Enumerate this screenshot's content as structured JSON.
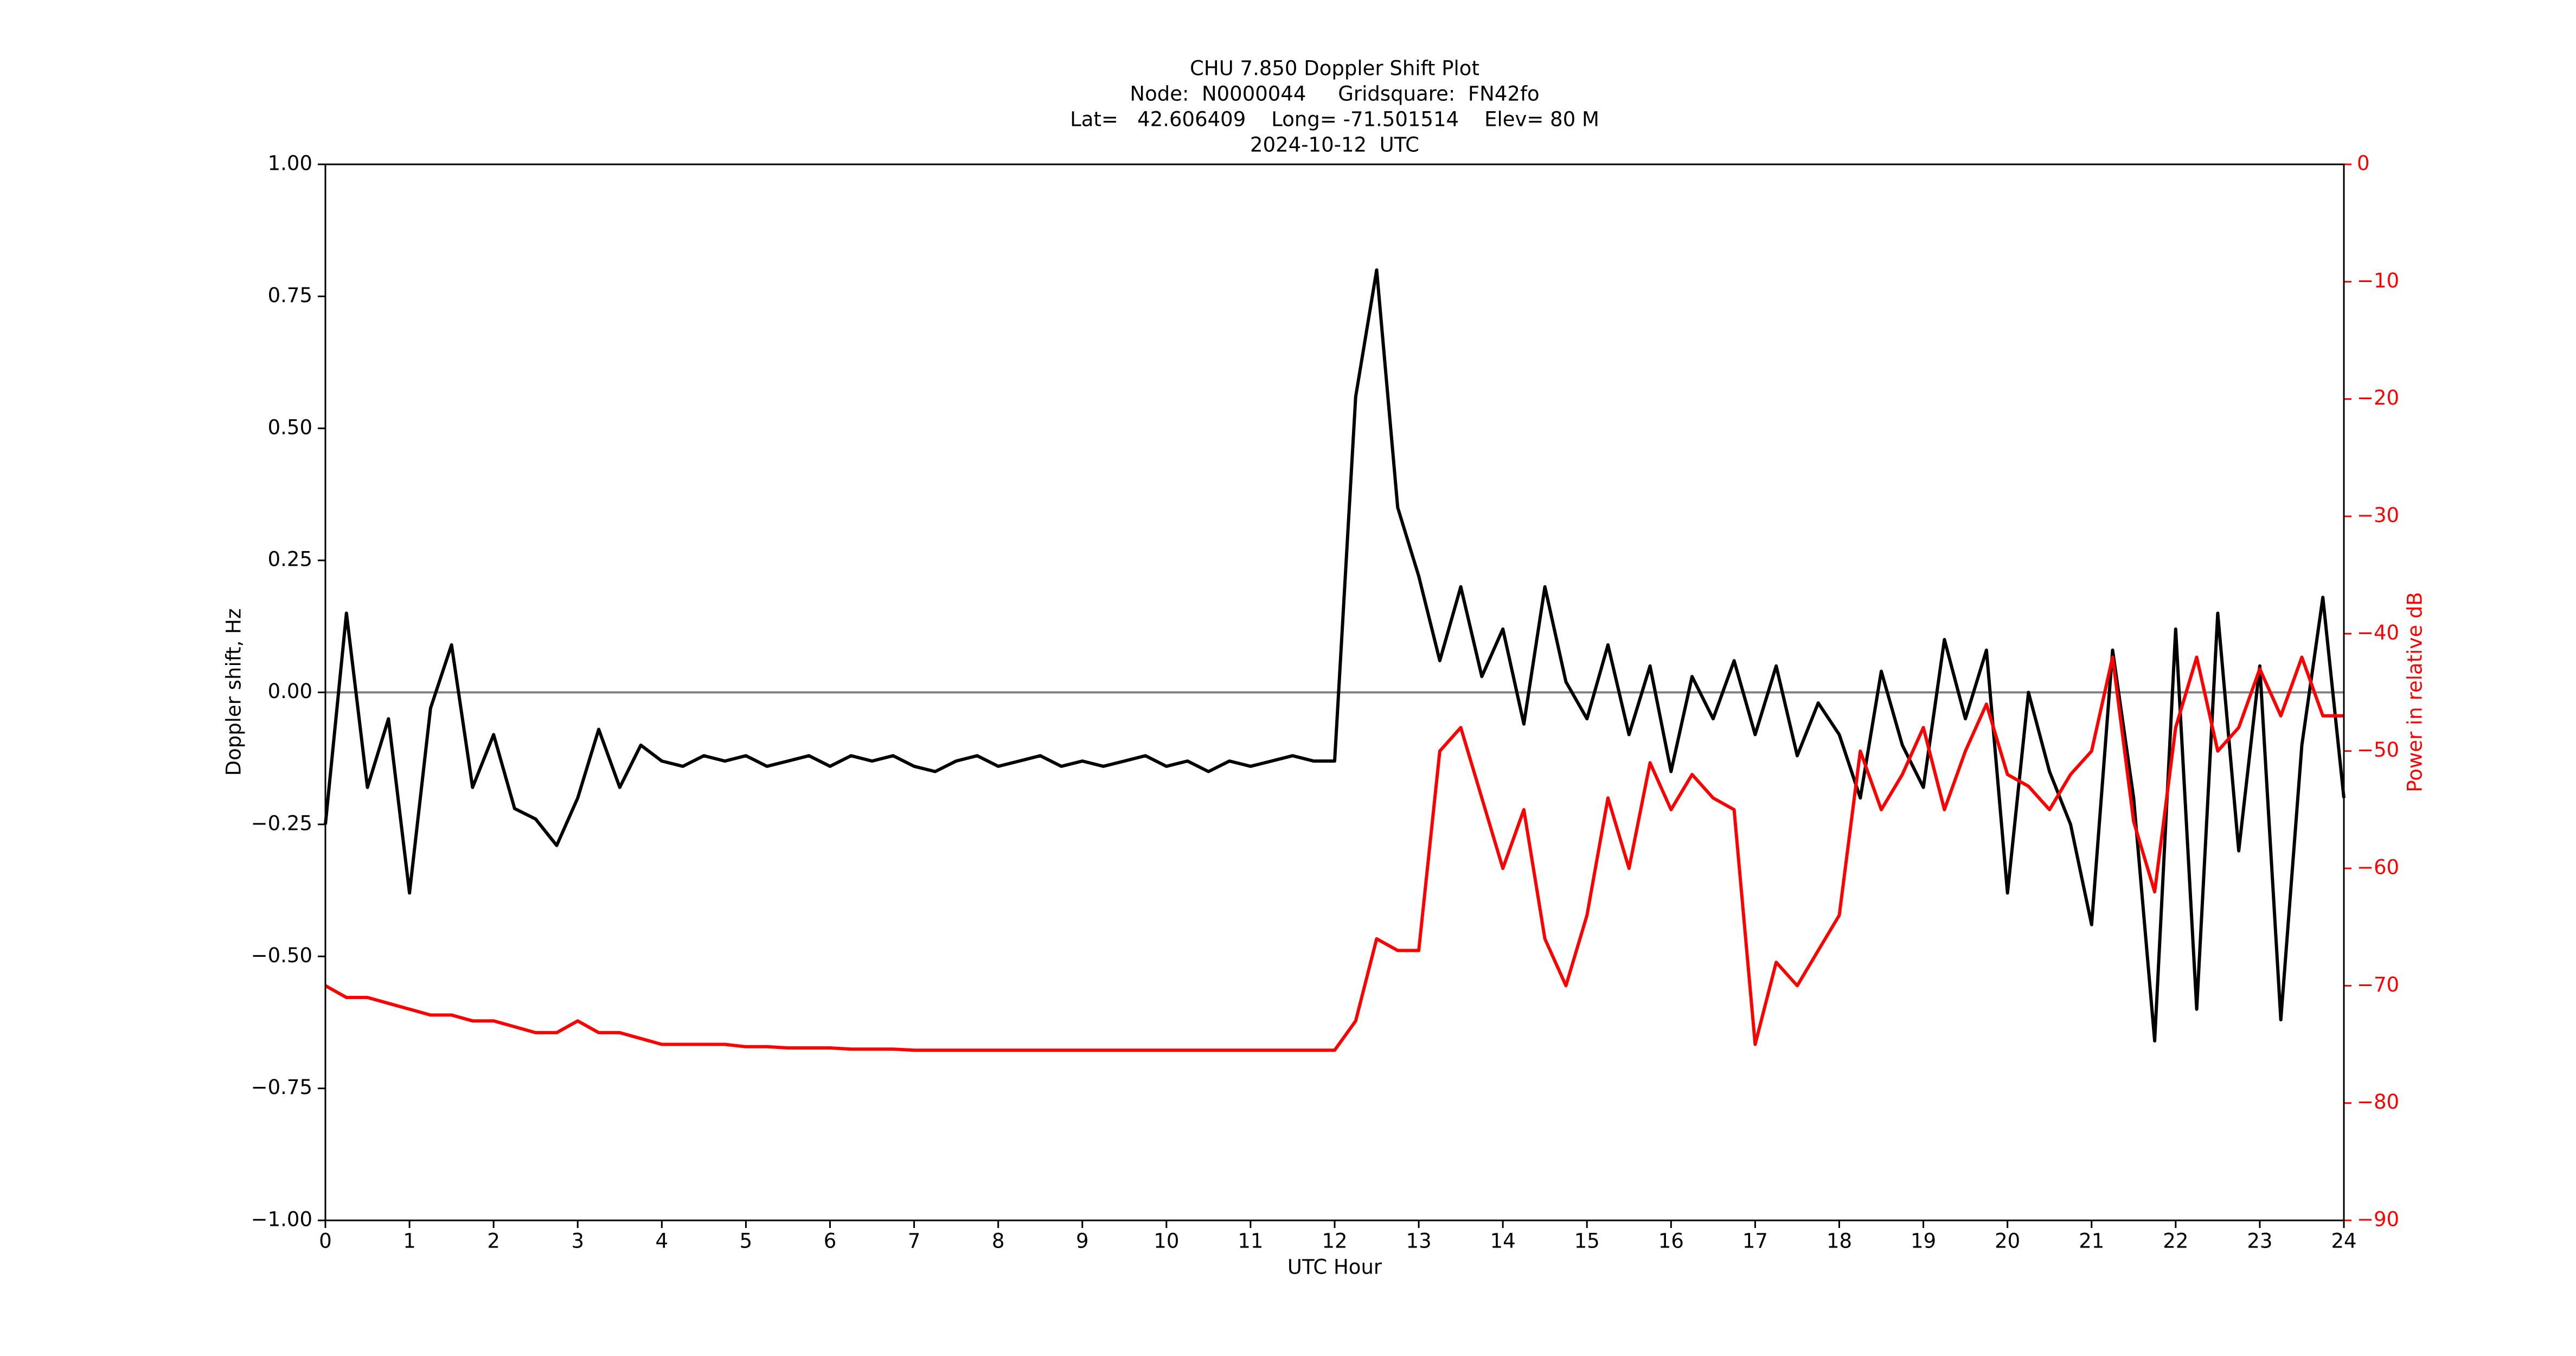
{
  "chart_data": {
    "type": "line",
    "title": [
      "CHU 7.850 Doppler Shift Plot",
      "Node:  N0000044     Gridsquare:  FN42fo",
      "Lat=   42.606409    Long= -71.501514    Elev= 80 M",
      "2024-10-12  UTC"
    ],
    "xlabel": "UTC Hour",
    "ylabel": "Doppler shift, Hz",
    "y2label": "Power in relative dB",
    "xlim": [
      0,
      24
    ],
    "xticks": [
      0,
      1,
      2,
      3,
      4,
      5,
      6,
      7,
      8,
      9,
      10,
      11,
      12,
      13,
      14,
      15,
      16,
      17,
      18,
      19,
      20,
      21,
      22,
      23,
      24
    ],
    "ylim": [
      -1,
      1
    ],
    "yticks": [
      {
        "value": -1,
        "label": "−1.00"
      },
      {
        "value": -0.75,
        "label": "−0.75"
      },
      {
        "value": -0.5,
        "label": "−0.50"
      },
      {
        "value": -0.25,
        "label": "−0.25"
      },
      {
        "value": 0,
        "label": "0.00"
      },
      {
        "value": 0.25,
        "label": "0.25"
      },
      {
        "value": 0.5,
        "label": "0.50"
      },
      {
        "value": 0.75,
        "label": "0.75"
      },
      {
        "value": 1,
        "label": "1.00"
      }
    ],
    "y2lim": [
      -90,
      0
    ],
    "y2ticks": [
      {
        "value": -90,
        "label": "−90"
      },
      {
        "value": -80,
        "label": "−80"
      },
      {
        "value": -70,
        "label": "−70"
      },
      {
        "value": -60,
        "label": "−60"
      },
      {
        "value": -50,
        "label": "−50"
      },
      {
        "value": -40,
        "label": "−40"
      },
      {
        "value": -30,
        "label": "−30"
      },
      {
        "value": -20,
        "label": "−20"
      },
      {
        "value": -10,
        "label": "−10"
      },
      0
    ],
    "y2color": "#ff0000",
    "hlines": [
      0
    ],
    "hline_color": "#808080",
    "x": [
      0,
      0.25,
      0.5,
      0.75,
      1,
      1.25,
      1.5,
      1.75,
      2,
      2.25,
      2.5,
      2.75,
      3,
      3.25,
      3.5,
      3.75,
      4,
      4.25,
      4.5,
      4.75,
      5,
      5.25,
      5.5,
      5.75,
      6,
      6.25,
      6.5,
      6.75,
      7,
      7.25,
      7.5,
      7.75,
      8,
      8.25,
      8.5,
      8.75,
      9,
      9.25,
      9.5,
      9.75,
      10,
      10.25,
      10.5,
      10.75,
      11,
      11.25,
      11.5,
      11.75,
      12,
      12.25,
      12.5,
      12.75,
      13,
      13.25,
      13.5,
      13.75,
      14,
      14.25,
      14.5,
      14.75,
      15,
      15.25,
      15.5,
      15.75,
      16,
      16.25,
      16.5,
      16.75,
      17,
      17.25,
      17.5,
      17.75,
      18,
      18.25,
      18.5,
      18.75,
      19,
      19.25,
      19.5,
      19.75,
      20,
      20.25,
      20.5,
      20.75,
      21,
      21.25,
      21.5,
      21.75,
      22,
      22.25,
      22.5,
      22.75,
      23,
      23.25,
      23.5,
      23.75,
      24
    ],
    "series": [
      {
        "color": "#000000",
        "values": [
          -0.25,
          0.15,
          -0.18,
          -0.05,
          -0.38,
          -0.03,
          0.09,
          -0.18,
          -0.08,
          -0.22,
          -0.24,
          -0.29,
          -0.2,
          -0.07,
          -0.18,
          -0.1,
          -0.13,
          -0.14,
          -0.12,
          -0.13,
          -0.12,
          -0.14,
          -0.13,
          -0.12,
          -0.14,
          -0.12,
          -0.13,
          -0.12,
          -0.14,
          -0.15,
          -0.13,
          -0.12,
          -0.14,
          -0.13,
          -0.12,
          -0.14,
          -0.13,
          -0.14,
          -0.13,
          -0.12,
          -0.14,
          -0.13,
          -0.15,
          -0.13,
          -0.14,
          -0.13,
          -0.12,
          -0.13,
          -0.13,
          0.56,
          0.8,
          0.35,
          0.22,
          0.06,
          0.2,
          0.03,
          0.12,
          -0.06,
          0.2,
          0.02,
          -0.05,
          0.09,
          -0.08,
          0.05,
          -0.15,
          0.03,
          -0.05,
          0.06,
          -0.08,
          0.05,
          -0.12,
          -0.02,
          -0.08,
          -0.2,
          0.04,
          -0.1,
          -0.18,
          0.1,
          -0.05,
          0.08,
          -0.38,
          0,
          -0.15,
          -0.25,
          -0.44,
          0.08,
          -0.2,
          -0.66,
          0.12,
          -0.6,
          0.15,
          -0.3,
          0.05,
          -0.62,
          -0.1,
          0.18,
          -0.2
        ]
      },
      {
        "color": "#ff0000",
        "axis": "y2",
        "values": [
          -70,
          -71,
          -71,
          -71.5,
          -72,
          -72.5,
          -72.5,
          -73,
          -73,
          -73.5,
          -74,
          -74,
          -73,
          -74,
          -74,
          -74.5,
          -75,
          -75,
          -75,
          -75,
          -75.2,
          -75.2,
          -75.3,
          -75.3,
          -75.3,
          -75.4,
          -75.4,
          -75.4,
          -75.5,
          -75.5,
          -75.5,
          -75.5,
          -75.5,
          -75.5,
          -75.5,
          -75.5,
          -75.5,
          -75.5,
          -75.5,
          -75.5,
          -75.5,
          -75.5,
          -75.5,
          -75.5,
          -75.5,
          -75.5,
          -75.5,
          -75.5,
          -75.5,
          -73,
          -66,
          -67,
          -67,
          -50,
          -48,
          -54,
          -60,
          -55,
          -66,
          -70,
          -64,
          -54,
          -60,
          -51,
          -55,
          -52,
          -54,
          -55,
          -75,
          -68,
          -70,
          -67,
          -64,
          -50,
          -55,
          -52,
          -48,
          -55,
          -50,
          -46,
          -52,
          -53,
          -55,
          -52,
          -50,
          -42,
          -56,
          -62,
          -48,
          -42,
          -50,
          -48,
          -43,
          -47,
          -42,
          -47,
          -47
        ]
      }
    ]
  }
}
